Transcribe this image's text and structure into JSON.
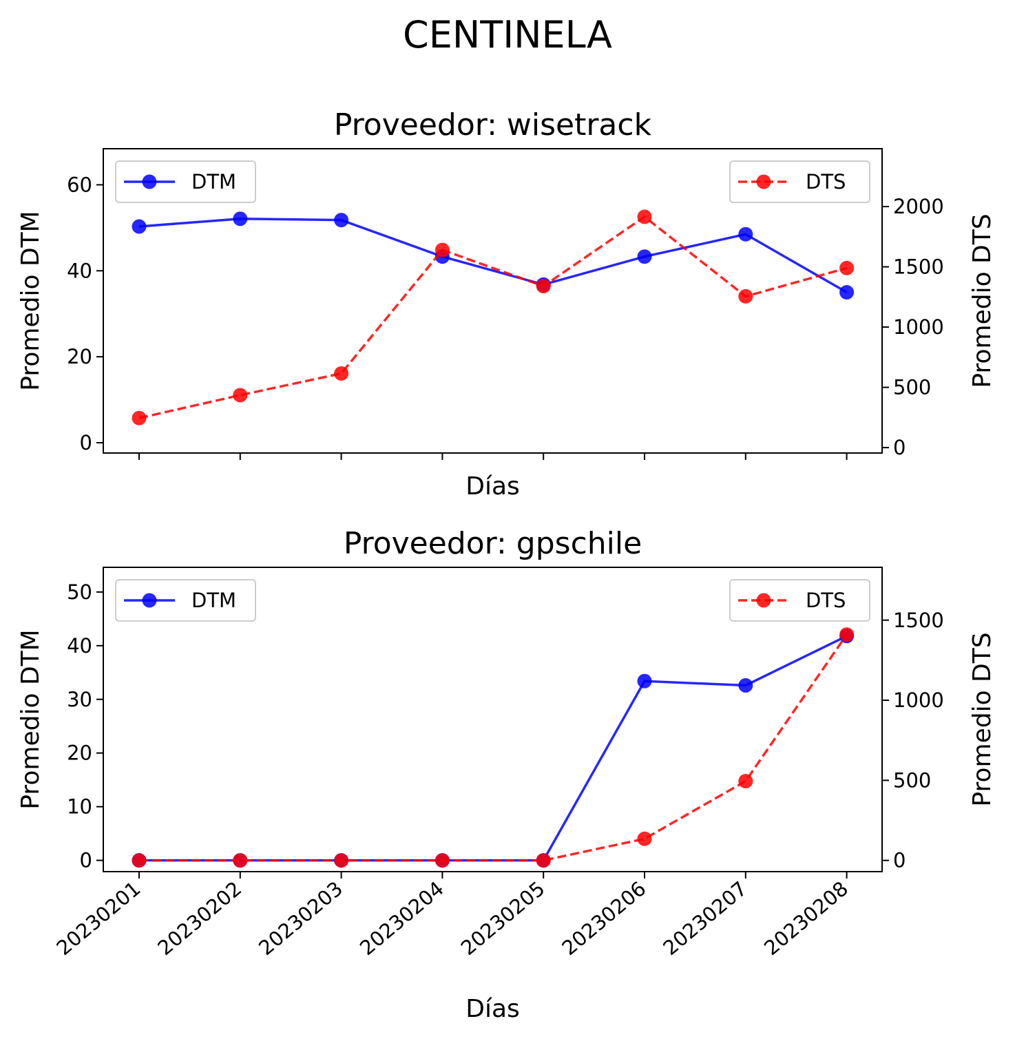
{
  "figure_title": "CENTINELA",
  "chart_data": [
    {
      "type": "line",
      "title": "Proveedor: wisetrack",
      "xlabel": "Días",
      "ylabel_left": "Promedio DTM",
      "ylabel_right": "Promedio DTS",
      "categories": [
        "20230201",
        "20230202",
        "20230203",
        "20230204",
        "20230205",
        "20230206",
        "20230207",
        "20230208"
      ],
      "show_x_tick_labels": false,
      "ylim_left": [
        -2.4,
        68.4
      ],
      "ylim_right": [
        -45,
        2480
      ],
      "yticks_left": [
        0,
        20,
        40,
        60
      ],
      "yticks_right": [
        0,
        500,
        1000,
        1500,
        2000
      ],
      "series": [
        {
          "name": "DTM",
          "axis": "left",
          "color": "#0000ff",
          "style": "solid",
          "values": [
            50.3,
            52.1,
            51.8,
            43.3,
            36.8,
            43.3,
            48.5,
            35.0
          ]
        },
        {
          "name": "DTS",
          "axis": "right",
          "color": "#ff0000",
          "style": "dashed",
          "values": [
            245,
            435,
            615,
            1640,
            1340,
            1915,
            1255,
            1490
          ]
        }
      ],
      "legend": [
        {
          "series": "DTM",
          "placement": "top-left"
        },
        {
          "series": "DTS",
          "placement": "top-right"
        }
      ]
    },
    {
      "type": "line",
      "title": "Proveedor: gpschile",
      "xlabel": "Días",
      "ylabel_left": "Promedio DTM",
      "ylabel_right": "Promedio DTS",
      "categories": [
        "20230201",
        "20230202",
        "20230203",
        "20230204",
        "20230205",
        "20230206",
        "20230207",
        "20230208"
      ],
      "show_x_tick_labels": true,
      "ylim_left": [
        -2.1,
        54.6
      ],
      "ylim_right": [
        -70,
        1830
      ],
      "yticks_left": [
        0,
        10,
        20,
        30,
        40,
        50
      ],
      "yticks_right": [
        0,
        500,
        1000,
        1500
      ],
      "series": [
        {
          "name": "DTM",
          "axis": "left",
          "color": "#0000ff",
          "style": "solid",
          "values": [
            0,
            0,
            0,
            0,
            0,
            33.4,
            32.6,
            41.8
          ]
        },
        {
          "name": "DTS",
          "axis": "right",
          "color": "#ff0000",
          "style": "dashed",
          "values": [
            0,
            0,
            0,
            0,
            0,
            135,
            495,
            1410
          ]
        }
      ],
      "legend": [
        {
          "series": "DTM",
          "placement": "top-left"
        },
        {
          "series": "DTS",
          "placement": "top-right"
        }
      ]
    }
  ]
}
